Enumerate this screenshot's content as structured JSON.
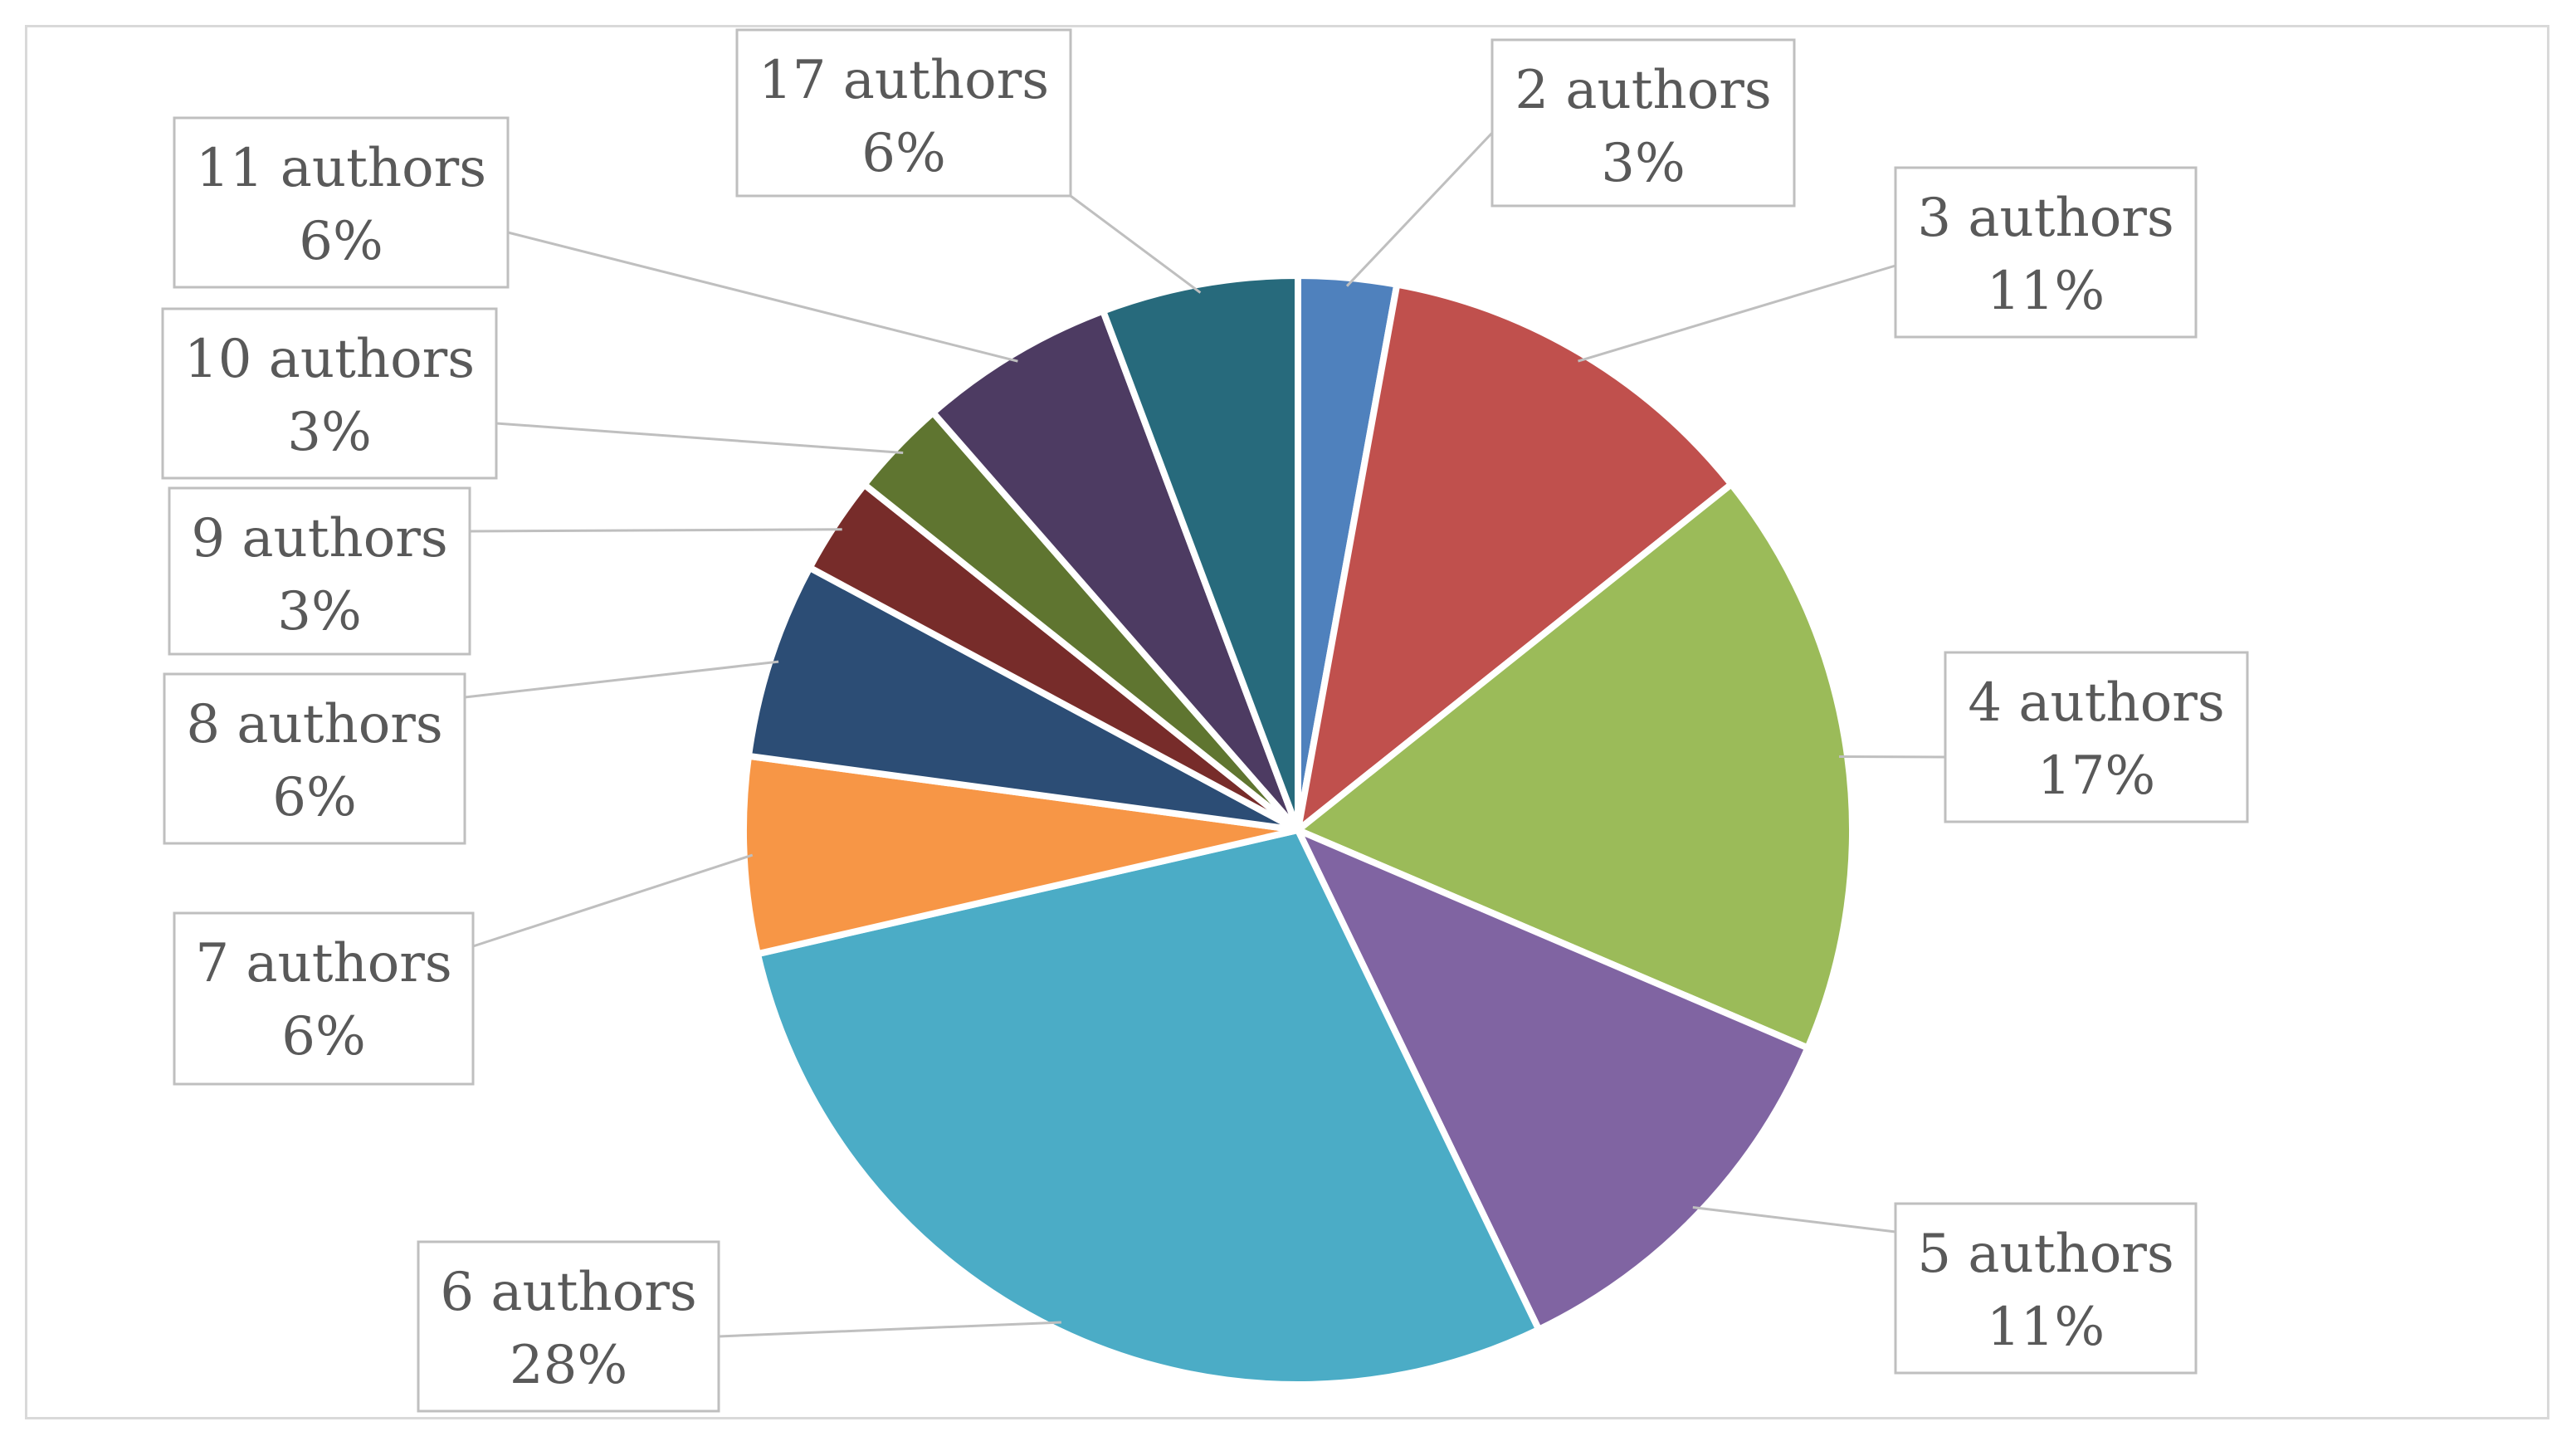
{
  "chart_data": {
    "type": "pie",
    "title": "",
    "slices": [
      {
        "label": "2 authors",
        "percent_label": "3%",
        "value": 2.78,
        "color": "#4F81BD"
      },
      {
        "label": "3 authors",
        "percent_label": "11%",
        "value": 11.11,
        "color": "#C0504D"
      },
      {
        "label": "4 authors",
        "percent_label": "17%",
        "value": 16.67,
        "color": "#9BBB59"
      },
      {
        "label": "5 authors",
        "percent_label": "11%",
        "value": 11.11,
        "color": "#8064A2"
      },
      {
        "label": "6 authors",
        "percent_label": "28%",
        "value": 27.78,
        "color": "#4BACC6"
      },
      {
        "label": "7 authors",
        "percent_label": "6%",
        "value": 5.56,
        "color": "#F79646"
      },
      {
        "label": "8 authors",
        "percent_label": "6%",
        "value": 5.56,
        "color": "#2C4D75"
      },
      {
        "label": "9 authors",
        "percent_label": "3%",
        "value": 2.78,
        "color": "#772C2A"
      },
      {
        "label": "10 authors",
        "percent_label": "3%",
        "value": 2.78,
        "color": "#5F7530"
      },
      {
        "label": "11 authors",
        "percent_label": "6%",
        "value": 5.56,
        "color": "#4D3B62"
      },
      {
        "label": "17 authors",
        "percent_label": "6%",
        "value": 5.56,
        "color": "#276A7C"
      }
    ],
    "legend": "none",
    "data_labels": "outside with leader lines"
  }
}
